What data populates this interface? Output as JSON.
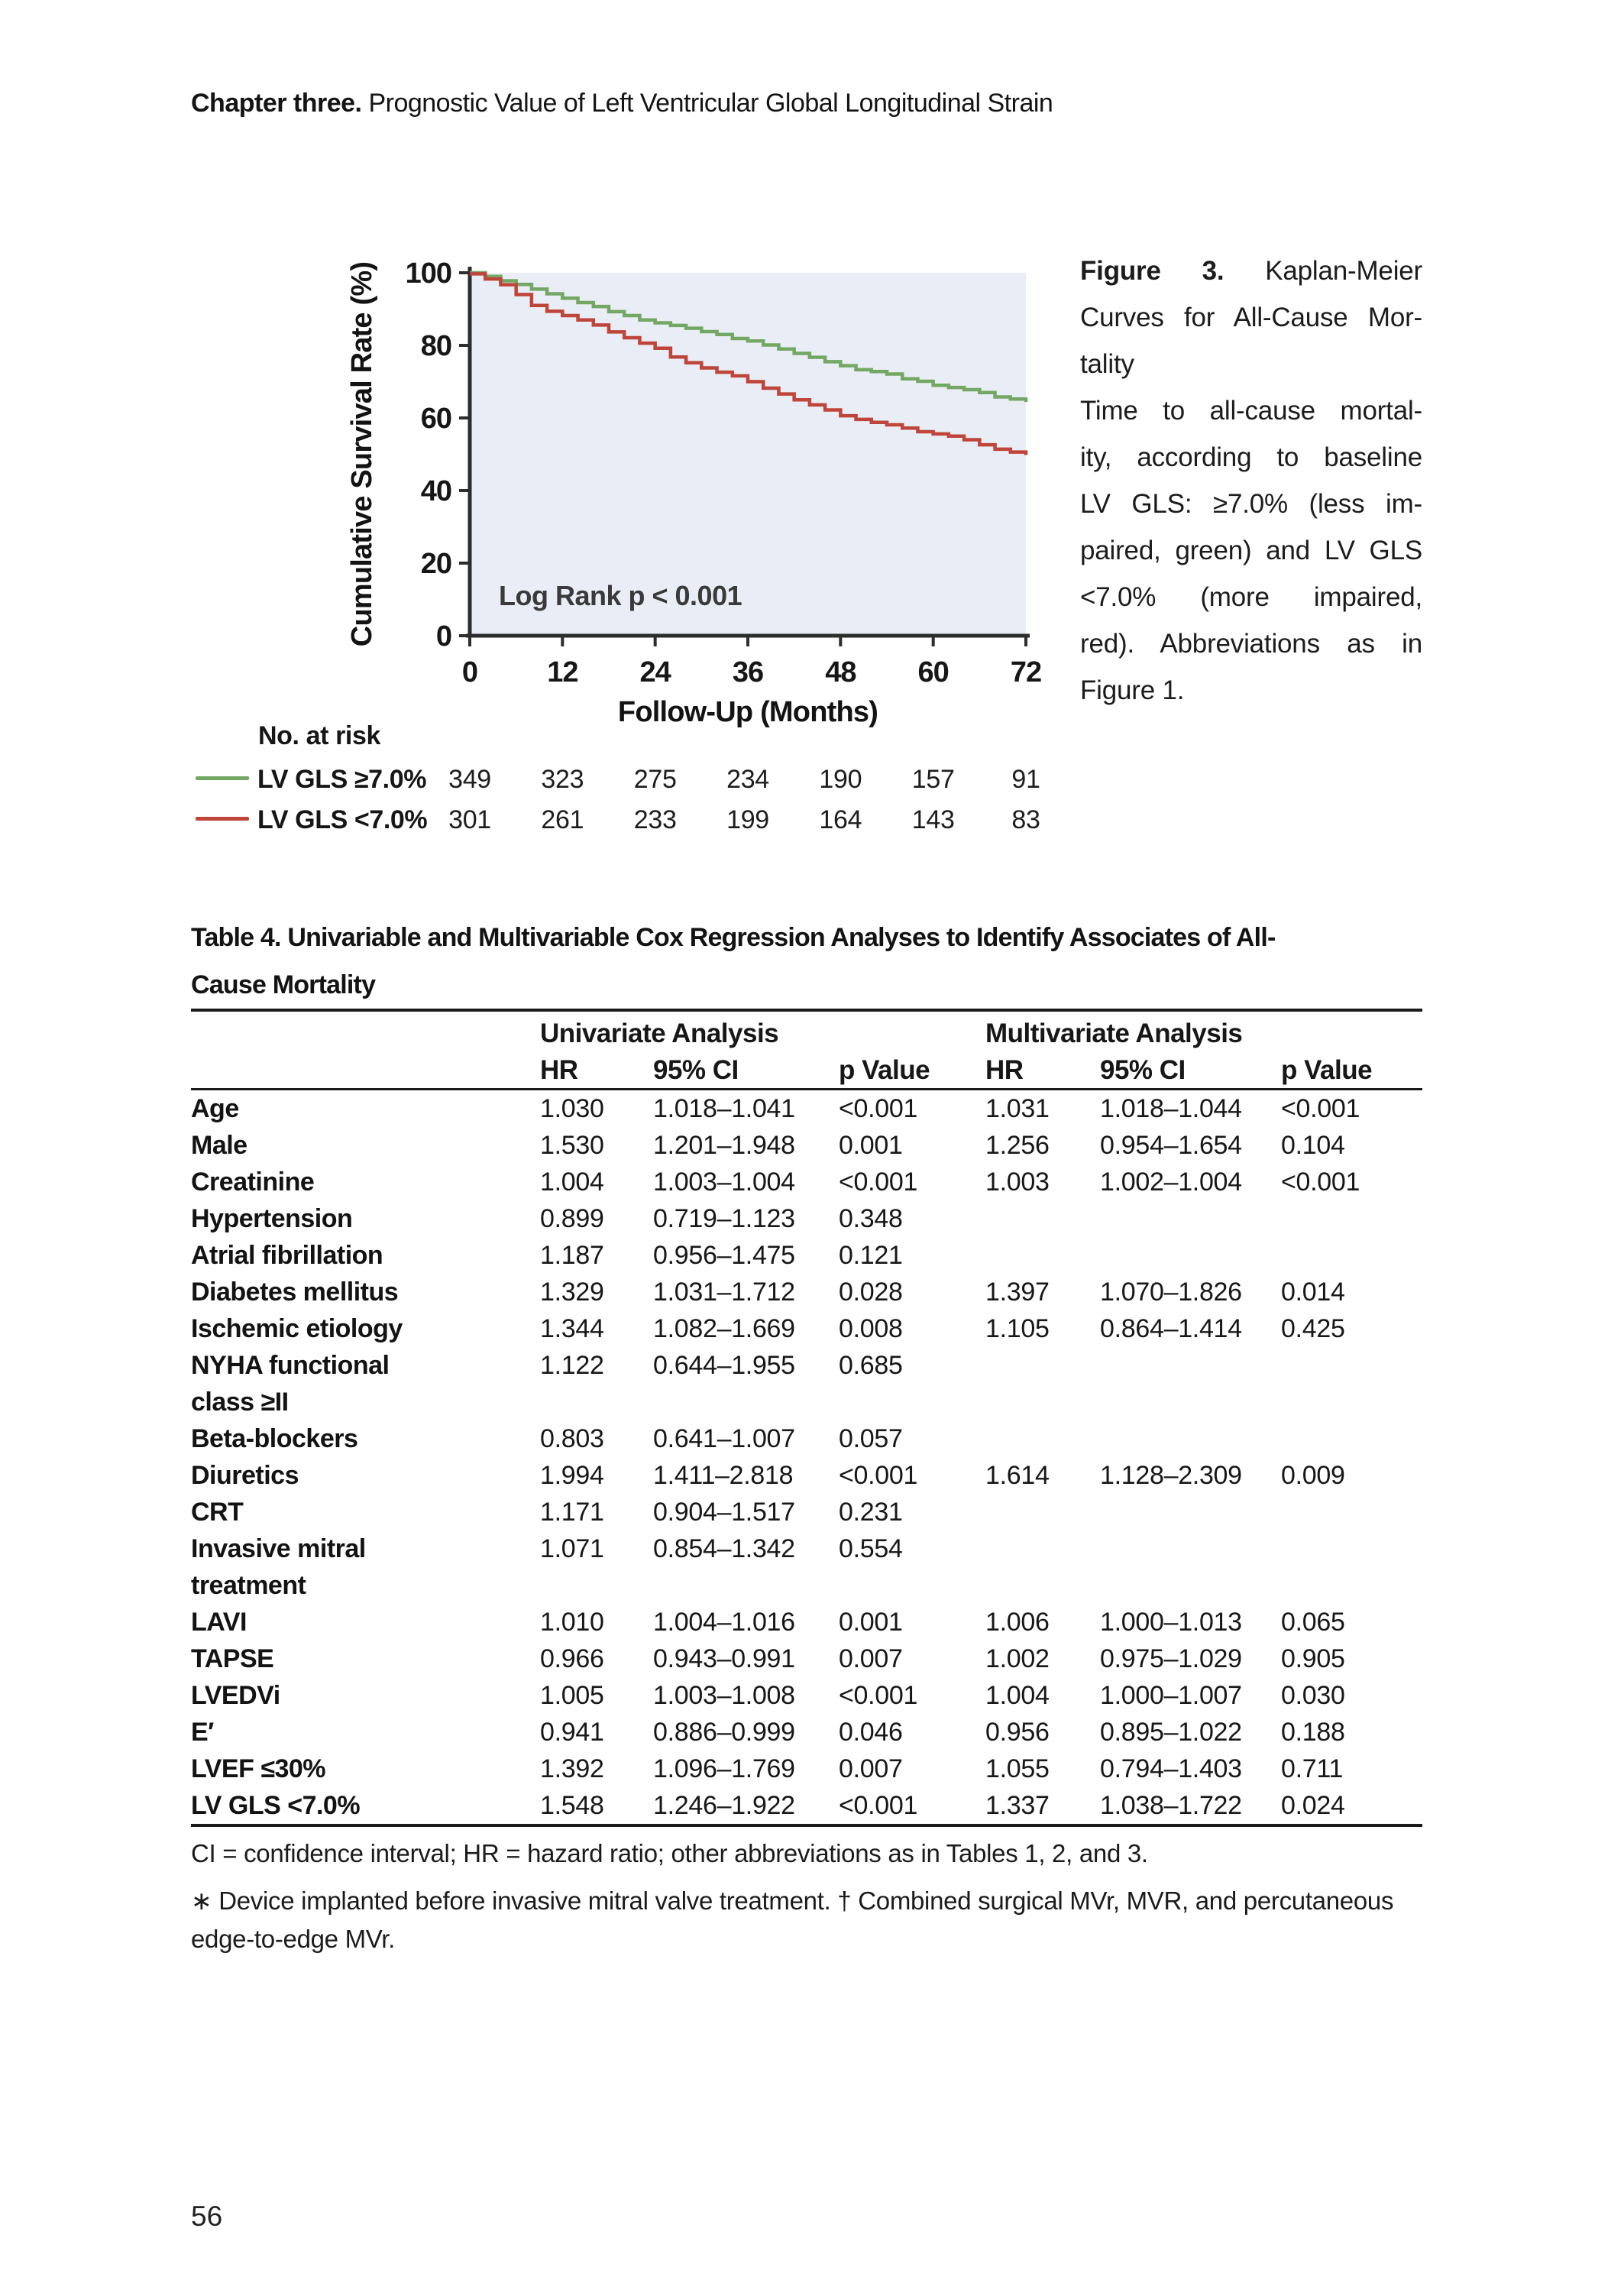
{
  "page": {
    "number": "56"
  },
  "header": {
    "chapter_label": "Chapter three.",
    "chapter_title": " Prognostic Value of Left Ventricular Global Longitudinal Strain"
  },
  "figure": {
    "caption_lines": [
      {
        "bold": "Figure 3.",
        "text": " Kaplan-Meier",
        "justify": true
      },
      {
        "text": "Curves for All-Cause Mor-",
        "justify": true
      },
      {
        "text": "tality",
        "justify": false
      },
      {
        "text": "Time to all-cause mortal-",
        "justify": true
      },
      {
        "text": "ity, according to baseline",
        "justify": true
      },
      {
        "text": "LV GLS: ≥7.0% (less im-",
        "justify": true
      },
      {
        "text": "paired, green) and LV GLS",
        "justify": true
      },
      {
        "text": "<7.0% (more impaired,",
        "justify": true
      },
      {
        "text": "red). Abbreviations as in",
        "justify": true
      },
      {
        "text": "Figure 1.",
        "justify": false
      }
    ]
  },
  "chart_data": {
    "type": "line",
    "step": true,
    "xlabel": "Follow-Up (Months)",
    "ylabel": "Cumulative Survival Rate (%)",
    "xlim": [
      0,
      72
    ],
    "ylim": [
      0,
      100
    ],
    "xticks": [
      0,
      12,
      24,
      36,
      48,
      60,
      72
    ],
    "yticks": [
      0,
      20,
      40,
      60,
      80,
      100
    ],
    "annotation": "Log Rank p < 0.001",
    "plot_bg": "#e9edf5",
    "axis_color": "#2d2d2d",
    "series": [
      {
        "name": "LV GLS ≥7.0%",
        "color": "#73a864",
        "points": [
          [
            0,
            100
          ],
          [
            2,
            99
          ],
          [
            4,
            97.8
          ],
          [
            6,
            96.8
          ],
          [
            8,
            95.5
          ],
          [
            10,
            94.2
          ],
          [
            12,
            93
          ],
          [
            14,
            91.8
          ],
          [
            16,
            90.7
          ],
          [
            18,
            89.3
          ],
          [
            20,
            88.2
          ],
          [
            22,
            87
          ],
          [
            24,
            86.2
          ],
          [
            26,
            85.5
          ],
          [
            28,
            84.7
          ],
          [
            30,
            83.8
          ],
          [
            32,
            83
          ],
          [
            34,
            81.9
          ],
          [
            36,
            81.2
          ],
          [
            38,
            80.1
          ],
          [
            40,
            79
          ],
          [
            42,
            77.8
          ],
          [
            44,
            76.7
          ],
          [
            46,
            75.5
          ],
          [
            48,
            74.4
          ],
          [
            50,
            73.3
          ],
          [
            52,
            72.8
          ],
          [
            54,
            72.1
          ],
          [
            56,
            70.8
          ],
          [
            58,
            70.1
          ],
          [
            60,
            69
          ],
          [
            62,
            68.4
          ],
          [
            64,
            67.8
          ],
          [
            66,
            67
          ],
          [
            68,
            65.8
          ],
          [
            70,
            65.2
          ],
          [
            72,
            64.4
          ]
        ]
      },
      {
        "name": "LV GLS <7.0%",
        "color": "#bf4439",
        "points": [
          [
            0,
            99.7
          ],
          [
            2,
            98.3
          ],
          [
            4,
            96.7
          ],
          [
            6,
            94
          ],
          [
            8,
            91
          ],
          [
            10,
            89.4
          ],
          [
            12,
            88.2
          ],
          [
            14,
            87
          ],
          [
            16,
            85.6
          ],
          [
            18,
            83.7
          ],
          [
            20,
            82.1
          ],
          [
            22,
            80.6
          ],
          [
            24,
            79.2
          ],
          [
            26,
            76.8
          ],
          [
            28,
            75.2
          ],
          [
            30,
            73.8
          ],
          [
            32,
            72.6
          ],
          [
            34,
            71.6
          ],
          [
            36,
            70
          ],
          [
            38,
            68.2
          ],
          [
            40,
            66.6
          ],
          [
            42,
            65
          ],
          [
            44,
            63.6
          ],
          [
            46,
            62.2
          ],
          [
            48,
            60.6
          ],
          [
            50,
            59.6
          ],
          [
            52,
            58.8
          ],
          [
            54,
            58.1
          ],
          [
            56,
            57.2
          ],
          [
            58,
            56.2
          ],
          [
            60,
            55.6
          ],
          [
            62,
            55
          ],
          [
            64,
            54
          ],
          [
            66,
            52.6
          ],
          [
            68,
            51.4
          ],
          [
            70,
            50.6
          ],
          [
            72,
            49.8
          ]
        ]
      }
    ],
    "at_risk": {
      "label": "No. at risk",
      "months": [
        0,
        12,
        24,
        36,
        48,
        60,
        72
      ],
      "rows": [
        {
          "name": "LV GLS ≥7.0%",
          "color": "#73a864",
          "values": [
            "349",
            "323",
            "275",
            "234",
            "190",
            "157",
            "91"
          ]
        },
        {
          "name": "LV GLS <7.0%",
          "color": "#bf4439",
          "values": [
            "301",
            "261",
            "233",
            "199",
            "164",
            "143",
            "83"
          ]
        }
      ]
    }
  },
  "table": {
    "title_lines": [
      "Table 4. Univariable and Multivariable Cox Regression Analyses to Identify Associates of All-",
      "Cause Mortality"
    ],
    "group_headers": [
      "Univariate Analysis",
      "Multivariate Analysis"
    ],
    "col_headers": [
      "HR",
      "95% CI",
      "p Value",
      "HR",
      "95% CI",
      "p Value"
    ],
    "rows": [
      {
        "label": "Age",
        "cells": [
          "1.030",
          "1.018–1.041",
          "<0.001",
          "1.031",
          "1.018–1.044",
          "<0.001"
        ]
      },
      {
        "label": "Male",
        "cells": [
          "1.530",
          "1.201–1.948",
          "0.001",
          "1.256",
          "0.954–1.654",
          "0.104"
        ]
      },
      {
        "label": "Creatinine",
        "cells": [
          "1.004",
          "1.003–1.004",
          "<0.001",
          "1.003",
          "1.002–1.004",
          "<0.001"
        ]
      },
      {
        "label": "Hypertension",
        "cells": [
          "0.899",
          "0.719–1.123",
          "0.348",
          "",
          "",
          ""
        ]
      },
      {
        "label": "Atrial fibrillation",
        "cells": [
          "1.187",
          "0.956–1.475",
          "0.121",
          "",
          "",
          ""
        ]
      },
      {
        "label": "Diabetes mellitus",
        "cells": [
          "1.329",
          "1.031–1.712",
          "0.028",
          "1.397",
          "1.070–1.826",
          "0.014"
        ]
      },
      {
        "label": "Ischemic etiology",
        "cells": [
          "1.344",
          "1.082–1.669",
          "0.008",
          "1.105",
          "0.864–1.414",
          "0.425"
        ]
      },
      {
        "label": "NYHA functional class ≥II",
        "cells": [
          "1.122",
          "0.644–1.955",
          "0.685",
          "",
          "",
          ""
        ]
      },
      {
        "label": "Beta-blockers",
        "cells": [
          "0.803",
          "0.641–1.007",
          "0.057",
          "",
          "",
          ""
        ]
      },
      {
        "label": "Diuretics",
        "cells": [
          "1.994",
          "1.411–2.818",
          "<0.001",
          "1.614",
          "1.128–2.309",
          "0.009"
        ]
      },
      {
        "label": "CRT",
        "cells": [
          "1.171",
          "0.904–1.517",
          "0.231",
          "",
          "",
          ""
        ]
      },
      {
        "label": "Invasive mitral treatment",
        "cells": [
          "1.071",
          "0.854–1.342",
          "0.554",
          "",
          "",
          ""
        ]
      },
      {
        "label": "LAVI",
        "cells": [
          "1.010",
          "1.004–1.016",
          "0.001",
          "1.006",
          "1.000–1.013",
          "0.065"
        ]
      },
      {
        "label": "TAPSE",
        "cells": [
          "0.966",
          "0.943–0.991",
          "0.007",
          "1.002",
          "0.975–1.029",
          "0.905"
        ]
      },
      {
        "label": "LVEDVi",
        "cells": [
          "1.005",
          "1.003–1.008",
          "<0.001",
          "1.004",
          "1.000–1.007",
          "0.030"
        ]
      },
      {
        "label": "E′",
        "cells": [
          "0.941",
          "0.886–0.999",
          "0.046",
          "0.956",
          "0.895–1.022",
          "0.188"
        ]
      },
      {
        "label": "LVEF ≤30%",
        "cells": [
          "1.392",
          "1.096–1.769",
          "0.007",
          "1.055",
          "0.794–1.403",
          "0.711"
        ]
      },
      {
        "label": "LV GLS <7.0%",
        "cells": [
          "1.548",
          "1.246–1.922",
          "<0.001",
          "1.337",
          "1.038–1.722",
          "0.024"
        ]
      }
    ],
    "footnotes": [
      "CI = confidence interval; HR = hazard ratio; other abbreviations as in Tables 1, 2, and 3.",
      "∗ Device implanted before invasive mitral valve treatment. † Combined surgical MVr, MVR, and percutaneous edge-to-edge MVr."
    ]
  }
}
